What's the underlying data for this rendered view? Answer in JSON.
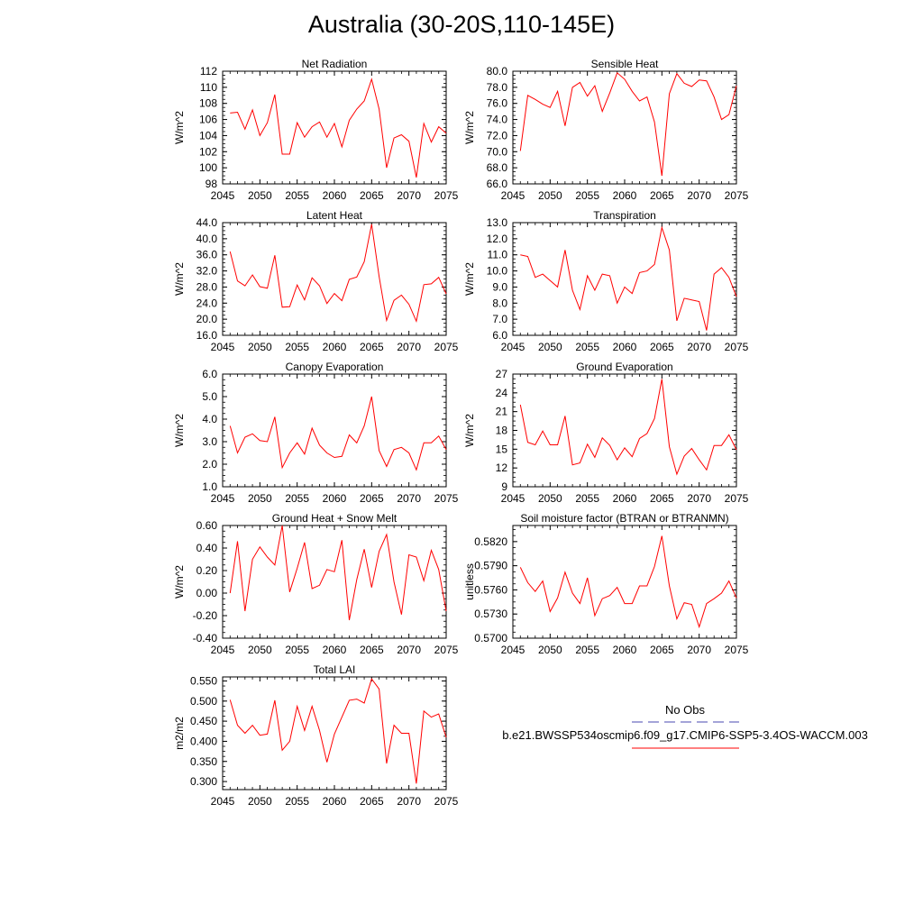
{
  "title": "Australia (30-20S,110-145E)",
  "legend": {
    "entries": [
      {
        "label": "No Obs",
        "color": "#4a4ab0",
        "dash": true
      },
      {
        "label": "b.e21.BWSSP534oscmip6.f09_g17.CMIP6-SSP5-3.4OS-WACCM.003",
        "color": "#ff0000",
        "dash": false
      }
    ]
  },
  "chart_data": [
    {
      "type": "line",
      "title": "Net Radiation",
      "ylabel": "W/m^2",
      "ylim": [
        98,
        112
      ],
      "yticks": [
        98,
        100,
        102,
        104,
        106,
        108,
        110,
        112
      ],
      "ytick_labels": [
        "98",
        "100",
        "102",
        "104",
        "106",
        "108",
        "110",
        "112"
      ],
      "xlim": [
        2045,
        2075
      ],
      "xticks": [
        2045,
        2050,
        2055,
        2060,
        2065,
        2070,
        2075
      ],
      "series": [
        {
          "color": "#ff0000",
          "x": [
            2046,
            2047,
            2048,
            2049,
            2050,
            2051,
            2052,
            2053,
            2054,
            2055,
            2056,
            2057,
            2058,
            2059,
            2060,
            2061,
            2062,
            2063,
            2064,
            2065,
            2066,
            2067,
            2068,
            2069,
            2070,
            2071,
            2072,
            2073,
            2074,
            2075
          ],
          "y": [
            106.8,
            106.9,
            104.8,
            107.2,
            104.0,
            105.6,
            109.1,
            101.7,
            101.7,
            105.6,
            103.8,
            105.1,
            105.7,
            103.8,
            105.5,
            102.6,
            105.9,
            107.3,
            108.3,
            111.0,
            107.3,
            100.0,
            103.7,
            104.1,
            103.3,
            98.8,
            105.5,
            103.2,
            105.1,
            104.3
          ]
        }
      ]
    },
    {
      "type": "line",
      "title": "Sensible Heat",
      "ylabel": "W/m^2",
      "ylim": [
        66,
        80
      ],
      "yticks": [
        66,
        68,
        70,
        72,
        74,
        76,
        78,
        80
      ],
      "ytick_labels": [
        "66.0",
        "68.0",
        "70.0",
        "72.0",
        "74.0",
        "76.0",
        "78.0",
        "80.0"
      ],
      "xlim": [
        2045,
        2075
      ],
      "xticks": [
        2045,
        2050,
        2055,
        2060,
        2065,
        2070,
        2075
      ],
      "series": [
        {
          "color": "#ff0000",
          "x": [
            2046,
            2047,
            2048,
            2049,
            2050,
            2051,
            2052,
            2053,
            2054,
            2055,
            2056,
            2057,
            2058,
            2059,
            2060,
            2061,
            2062,
            2063,
            2064,
            2065,
            2066,
            2067,
            2068,
            2069,
            2070,
            2071,
            2072,
            2073,
            2074,
            2075
          ],
          "y": [
            70.1,
            77.0,
            76.5,
            75.9,
            75.5,
            77.5,
            73.2,
            78.0,
            78.6,
            76.9,
            78.2,
            75.0,
            77.3,
            79.8,
            79.0,
            77.5,
            76.3,
            76.8,
            73.7,
            67.0,
            77.2,
            79.7,
            78.5,
            78.1,
            78.9,
            78.8,
            76.8,
            74.0,
            74.6,
            78.2
          ]
        }
      ]
    },
    {
      "type": "line",
      "title": "Latent Heat",
      "ylabel": "W/m^2",
      "ylim": [
        16,
        44
      ],
      "yticks": [
        16,
        20,
        24,
        28,
        32,
        36,
        40,
        44
      ],
      "ytick_labels": [
        "16.0",
        "20.0",
        "24.0",
        "28.0",
        "32.0",
        "36.0",
        "40.0",
        "44.0"
      ],
      "xlim": [
        2045,
        2075
      ],
      "xticks": [
        2045,
        2050,
        2055,
        2060,
        2065,
        2070,
        2075
      ],
      "series": [
        {
          "color": "#ff0000",
          "x": [
            2046,
            2047,
            2048,
            2049,
            2050,
            2051,
            2052,
            2053,
            2054,
            2055,
            2056,
            2057,
            2058,
            2059,
            2060,
            2061,
            2062,
            2063,
            2064,
            2065,
            2066,
            2067,
            2068,
            2069,
            2070,
            2071,
            2072,
            2073,
            2074,
            2075
          ],
          "y": [
            36.8,
            29.5,
            28.3,
            31.0,
            28.1,
            27.7,
            35.9,
            23.0,
            23.1,
            28.5,
            24.8,
            30.3,
            28.3,
            23.9,
            26.4,
            24.6,
            29.9,
            30.5,
            34.3,
            43.6,
            30.6,
            19.7,
            24.7,
            26.0,
            23.7,
            19.5,
            28.6,
            28.8,
            30.4,
            26.3
          ]
        }
      ]
    },
    {
      "type": "line",
      "title": "Transpiration",
      "ylabel": "W/m^2",
      "ylim": [
        6,
        13
      ],
      "yticks": [
        6,
        7,
        8,
        9,
        10,
        11,
        12,
        13
      ],
      "ytick_labels": [
        "6.0",
        "7.0",
        "8.0",
        "9.0",
        "10.0",
        "11.0",
        "12.0",
        "13.0"
      ],
      "xlim": [
        2045,
        2075
      ],
      "xticks": [
        2045,
        2050,
        2055,
        2060,
        2065,
        2070,
        2075
      ],
      "series": [
        {
          "color": "#ff0000",
          "x": [
            2046,
            2047,
            2048,
            2049,
            2050,
            2051,
            2052,
            2053,
            2054,
            2055,
            2056,
            2057,
            2058,
            2059,
            2060,
            2061,
            2062,
            2063,
            2064,
            2065,
            2066,
            2067,
            2068,
            2069,
            2070,
            2071,
            2072,
            2073,
            2074,
            2075
          ],
          "y": [
            11.0,
            10.9,
            9.6,
            9.8,
            9.4,
            9.0,
            11.3,
            8.8,
            7.6,
            9.7,
            8.8,
            9.8,
            9.7,
            8.0,
            9.0,
            8.6,
            9.9,
            10.0,
            10.4,
            12.7,
            11.3,
            6.9,
            8.3,
            8.2,
            8.1,
            6.3,
            9.8,
            10.2,
            9.6,
            8.4
          ]
        }
      ]
    },
    {
      "type": "line",
      "title": "Canopy Evaporation",
      "ylabel": "W/m^2",
      "ylim": [
        1,
        6
      ],
      "yticks": [
        1,
        2,
        3,
        4,
        5,
        6
      ],
      "ytick_labels": [
        "1.0",
        "2.0",
        "3.0",
        "4.0",
        "5.0",
        "6.0"
      ],
      "xlim": [
        2045,
        2075
      ],
      "xticks": [
        2045,
        2050,
        2055,
        2060,
        2065,
        2070,
        2075
      ],
      "series": [
        {
          "color": "#ff0000",
          "x": [
            2046,
            2047,
            2048,
            2049,
            2050,
            2051,
            2052,
            2053,
            2054,
            2055,
            2056,
            2057,
            2058,
            2059,
            2060,
            2061,
            2062,
            2063,
            2064,
            2065,
            2066,
            2067,
            2068,
            2069,
            2070,
            2071,
            2072,
            2073,
            2074,
            2075
          ],
          "y": [
            3.7,
            2.5,
            3.2,
            3.35,
            3.05,
            3.0,
            4.1,
            1.85,
            2.5,
            2.95,
            2.45,
            3.6,
            2.85,
            2.5,
            2.3,
            2.35,
            3.3,
            2.95,
            3.7,
            5.0,
            2.6,
            1.9,
            2.65,
            2.75,
            2.5,
            1.75,
            2.95,
            2.95,
            3.25,
            2.65
          ]
        }
      ]
    },
    {
      "type": "line",
      "title": "Ground Evaporation",
      "ylabel": "W/m^2",
      "ylim": [
        9,
        27
      ],
      "yticks": [
        9,
        12,
        15,
        18,
        21,
        24,
        27
      ],
      "ytick_labels": [
        "9",
        "12",
        "15",
        "18",
        "21",
        "24",
        "27"
      ],
      "xlim": [
        2045,
        2075
      ],
      "xticks": [
        2045,
        2050,
        2055,
        2060,
        2065,
        2070,
        2075
      ],
      "series": [
        {
          "color": "#ff0000",
          "x": [
            2046,
            2047,
            2048,
            2049,
            2050,
            2051,
            2052,
            2053,
            2054,
            2055,
            2056,
            2057,
            2058,
            2059,
            2060,
            2061,
            2062,
            2063,
            2064,
            2065,
            2066,
            2067,
            2068,
            2069,
            2070,
            2071,
            2072,
            2073,
            2074,
            2075
          ],
          "y": [
            22.1,
            16.1,
            15.7,
            17.9,
            15.7,
            15.7,
            20.3,
            12.5,
            12.8,
            15.8,
            13.7,
            16.8,
            15.6,
            13.3,
            15.2,
            13.8,
            16.7,
            17.5,
            19.9,
            26.2,
            15.4,
            11.0,
            13.9,
            15.1,
            13.3,
            11.7,
            15.6,
            15.6,
            17.3,
            14.9
          ]
        }
      ]
    },
    {
      "type": "line",
      "title": "Ground Heat + Snow Melt",
      "ylabel": "W/m^2",
      "ylim": [
        -0.4,
        0.6
      ],
      "yticks": [
        -0.4,
        -0.2,
        0.0,
        0.2,
        0.4,
        0.6
      ],
      "ytick_labels": [
        "-0.40",
        "-0.20",
        "0.00",
        "0.20",
        "0.40",
        "0.60"
      ],
      "xlim": [
        2045,
        2075
      ],
      "xticks": [
        2045,
        2050,
        2055,
        2060,
        2065,
        2070,
        2075
      ],
      "series": [
        {
          "color": "#ff0000",
          "x": [
            2046,
            2047,
            2048,
            2049,
            2050,
            2051,
            2052,
            2053,
            2054,
            2055,
            2056,
            2057,
            2058,
            2059,
            2060,
            2061,
            2062,
            2063,
            2064,
            2065,
            2066,
            2067,
            2068,
            2069,
            2070,
            2071,
            2072,
            2073,
            2074,
            2075
          ],
          "y": [
            0.0,
            0.46,
            -0.16,
            0.3,
            0.41,
            0.32,
            0.25,
            0.6,
            0.01,
            0.22,
            0.45,
            0.04,
            0.07,
            0.21,
            0.19,
            0.47,
            -0.24,
            0.12,
            0.39,
            0.05,
            0.37,
            0.52,
            0.1,
            -0.19,
            0.34,
            0.32,
            0.11,
            0.38,
            0.21,
            -0.16
          ]
        }
      ]
    },
    {
      "type": "line",
      "title": "Soil moisture factor (BTRAN or BTRANMN)",
      "ylabel": "unitless",
      "ylim": [
        0.57,
        0.584
      ],
      "yticks": [
        0.57,
        0.573,
        0.576,
        0.579,
        0.582
      ],
      "ytick_labels": [
        "0.5700",
        "0.5730",
        "0.5760",
        "0.5790",
        "0.5820"
      ],
      "xlim": [
        2045,
        2075
      ],
      "xticks": [
        2045,
        2050,
        2055,
        2060,
        2065,
        2070,
        2075
      ],
      "series": [
        {
          "color": "#ff0000",
          "x": [
            2046,
            2047,
            2048,
            2049,
            2050,
            2051,
            2052,
            2053,
            2054,
            2055,
            2056,
            2057,
            2058,
            2059,
            2060,
            2061,
            2062,
            2063,
            2064,
            2065,
            2066,
            2067,
            2068,
            2069,
            2070,
            2071,
            2072,
            2073,
            2074,
            2075
          ],
          "y": [
            0.5788,
            0.5769,
            0.5758,
            0.5771,
            0.5733,
            0.575,
            0.5782,
            0.5756,
            0.5743,
            0.5775,
            0.5728,
            0.5749,
            0.5753,
            0.5763,
            0.5743,
            0.5743,
            0.5765,
            0.5765,
            0.5789,
            0.5827,
            0.5765,
            0.5724,
            0.5744,
            0.5742,
            0.5714,
            0.5743,
            0.5749,
            0.5756,
            0.5771,
            0.575
          ]
        }
      ]
    },
    {
      "type": "line",
      "title": "Total LAI",
      "ylabel": "m2/m2",
      "ylim": [
        0.28,
        0.56
      ],
      "yticks": [
        0.3,
        0.35,
        0.4,
        0.45,
        0.5,
        0.55
      ],
      "ytick_labels": [
        "0.300",
        "0.350",
        "0.400",
        "0.450",
        "0.500",
        "0.550"
      ],
      "xlim": [
        2045,
        2075
      ],
      "xticks": [
        2045,
        2050,
        2055,
        2060,
        2065,
        2070,
        2075
      ],
      "series": [
        {
          "color": "#ff0000",
          "x": [
            2046,
            2047,
            2048,
            2049,
            2050,
            2051,
            2052,
            2053,
            2054,
            2055,
            2056,
            2057,
            2058,
            2059,
            2060,
            2061,
            2062,
            2063,
            2064,
            2065,
            2066,
            2067,
            2068,
            2069,
            2070,
            2071,
            2072,
            2073,
            2074,
            2075
          ],
          "y": [
            0.503,
            0.44,
            0.42,
            0.44,
            0.415,
            0.418,
            0.502,
            0.378,
            0.4,
            0.487,
            0.427,
            0.487,
            0.427,
            0.348,
            0.418,
            0.46,
            0.502,
            0.505,
            0.495,
            0.555,
            0.53,
            0.345,
            0.44,
            0.42,
            0.42,
            0.295,
            0.475,
            0.46,
            0.468,
            0.41
          ]
        }
      ]
    }
  ]
}
